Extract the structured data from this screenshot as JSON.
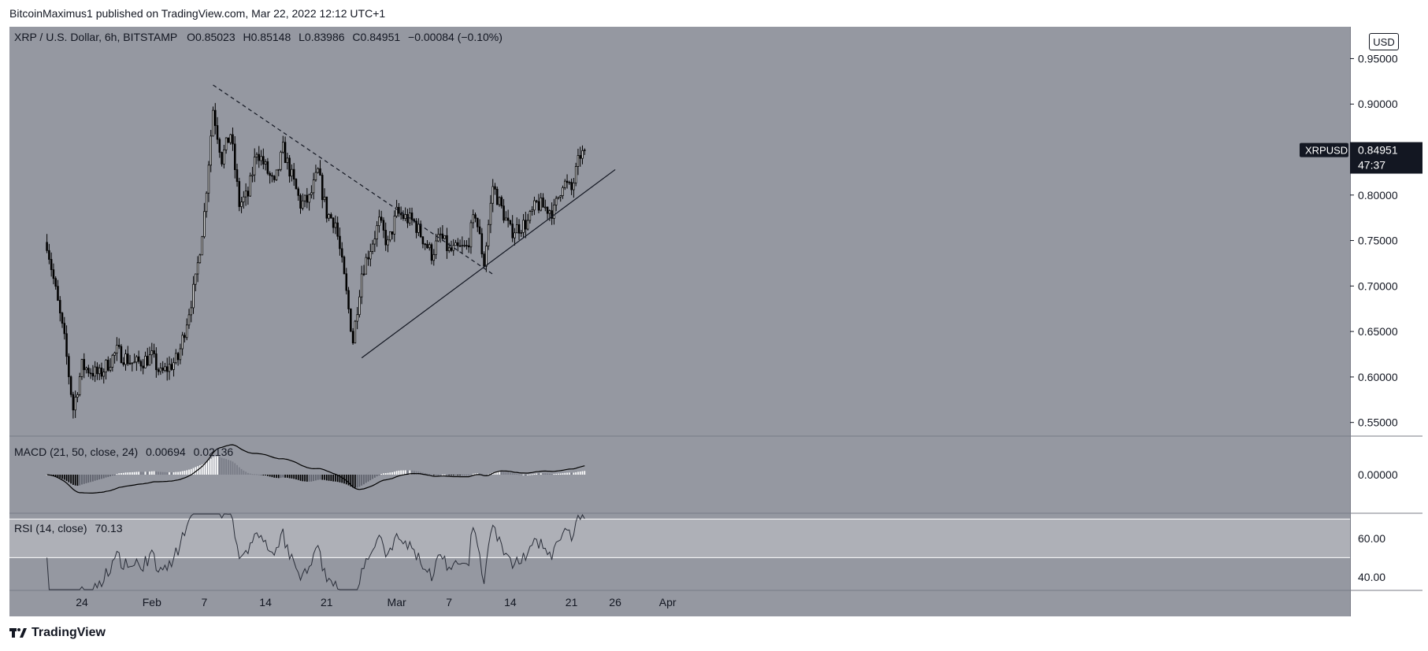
{
  "header": {
    "publish_line": "BitcoinMaximus1 published on TradingView.com, Mar 22, 2022 12:12 UTC+1"
  },
  "legend": {
    "symbol": "XRP / U.S. Dollar, 6h, BITSTAMP",
    "o_label": "O",
    "o_value": "0.85023",
    "h_label": "H",
    "h_value": "0.85148",
    "l_label": "L",
    "l_value": "0.83986",
    "c_label": "C",
    "c_value": "0.84951",
    "change": "−0.00084 (−0.10%)"
  },
  "currency": "USD",
  "price_tag": {
    "ticker": "XRPUSD",
    "price": "0.84951",
    "countdown": "47:37"
  },
  "macd": {
    "label": "MACD (21, 50, close, 24)",
    "v1": "0.00694",
    "v2": "0.02136",
    "axis_label": "0.00000"
  },
  "rsi": {
    "label": "RSI (14, close)",
    "value": "70.13",
    "axis_labels": [
      "60.00",
      "40.00"
    ]
  },
  "footer": {
    "brand": "TradingView"
  },
  "colors": {
    "pane_bg": "#9598a1",
    "rsi_band": "#aeb0b7",
    "up": "#ffffff",
    "down": "#000000",
    "hist_pos_strong": "#ffffff",
    "hist_pos_weak": "#787b86",
    "hist_neg_strong": "#000000",
    "hist_neg_weak": "#5d606b"
  },
  "chart_data": {
    "type": "candlestick",
    "timeframe": "6h",
    "x_ticks": [
      "24",
      "Feb",
      "7",
      "14",
      "21",
      "Mar",
      "7",
      "14",
      "21",
      "26",
      "Apr"
    ],
    "y_ticks": [
      0.95,
      0.9,
      0.85,
      0.8,
      0.75,
      0.7,
      0.65,
      0.6,
      0.55
    ],
    "ylim": [
      0.535,
      0.985
    ],
    "anchors": [
      [
        "2022-01-20",
        0.748
      ],
      [
        "2022-01-22",
        0.64
      ],
      [
        "2022-01-23",
        0.565
      ],
      [
        "2022-01-24",
        0.612
      ],
      [
        "2022-01-26",
        0.602
      ],
      [
        "2022-01-28",
        0.628
      ],
      [
        "2022-01-30",
        0.614
      ],
      [
        "2022-02-01",
        0.622
      ],
      [
        "2022-02-02",
        0.603
      ],
      [
        "2022-02-04",
        0.62
      ],
      [
        "2022-02-06",
        0.705
      ],
      [
        "2022-02-07",
        0.78
      ],
      [
        "2022-02-08",
        0.895
      ],
      [
        "2022-02-09",
        0.84
      ],
      [
        "2022-02-10",
        0.868
      ],
      [
        "2022-02-11",
        0.79
      ],
      [
        "2022-02-12",
        0.8
      ],
      [
        "2022-02-13",
        0.85
      ],
      [
        "2022-02-15",
        0.81
      ],
      [
        "2022-02-16",
        0.85
      ],
      [
        "2022-02-18",
        0.79
      ],
      [
        "2022-02-19",
        0.795
      ],
      [
        "2022-02-20",
        0.825
      ],
      [
        "2022-02-21",
        0.78
      ],
      [
        "2022-02-22",
        0.77
      ],
      [
        "2022-02-23",
        0.708
      ],
      [
        "2022-02-24",
        0.64
      ],
      [
        "2022-02-25",
        0.715
      ],
      [
        "2022-02-27",
        0.77
      ],
      [
        "2022-02-28",
        0.745
      ],
      [
        "2022-03-01",
        0.78
      ],
      [
        "2022-03-03",
        0.77
      ],
      [
        "2022-03-05",
        0.735
      ],
      [
        "2022-03-06",
        0.755
      ],
      [
        "2022-03-07",
        0.738
      ],
      [
        "2022-03-09",
        0.742
      ],
      [
        "2022-03-10",
        0.78
      ],
      [
        "2022-03-11",
        0.725
      ],
      [
        "2022-03-12",
        0.81
      ],
      [
        "2022-03-13",
        0.785
      ],
      [
        "2022-03-14",
        0.76
      ],
      [
        "2022-03-16",
        0.77
      ],
      [
        "2022-03-17",
        0.79
      ],
      [
        "2022-03-19",
        0.782
      ],
      [
        "2022-03-20",
        0.815
      ],
      [
        "2022-03-21",
        0.805
      ],
      [
        "2022-03-22",
        0.845
      ]
    ],
    "last_close": 0.84951,
    "trendlines": [
      {
        "style": "dashed",
        "from": [
          "2022-02-08",
          0.921
        ],
        "to": [
          "2022-03-12",
          0.713
        ]
      },
      {
        "style": "solid",
        "from": [
          "2022-02-25",
          0.621
        ],
        "to": [
          "2022-03-26",
          0.828
        ]
      }
    ],
    "macd": {
      "fast": 21,
      "slow": 50,
      "signal": 24,
      "macd_last": 0.00694,
      "signal_last": 0.02136
    },
    "rsi": {
      "period": 14,
      "last": 70.13,
      "ylim": [
        33,
        73
      ],
      "band": [
        50,
        70
      ]
    }
  }
}
